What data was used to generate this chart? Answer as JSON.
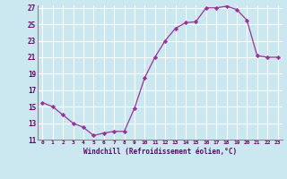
{
  "x": [
    0,
    1,
    2,
    3,
    4,
    5,
    6,
    7,
    8,
    9,
    10,
    11,
    12,
    13,
    14,
    15,
    16,
    17,
    18,
    19,
    20,
    21,
    22,
    23
  ],
  "y": [
    15.5,
    15.0,
    14.0,
    13.0,
    12.5,
    11.5,
    11.8,
    12.0,
    12.0,
    14.8,
    18.5,
    21.0,
    23.0,
    24.5,
    25.2,
    25.3,
    27.0,
    27.0,
    27.2,
    26.8,
    25.5,
    21.2,
    21.0,
    21.0
  ],
  "xlabel": "Windchill (Refroidissement éolien,°C)",
  "ylim": [
    11,
    27
  ],
  "yticks": [
    11,
    13,
    15,
    17,
    19,
    21,
    23,
    25,
    27
  ],
  "xticks": [
    0,
    1,
    2,
    3,
    4,
    5,
    6,
    7,
    8,
    9,
    10,
    11,
    12,
    13,
    14,
    15,
    16,
    17,
    18,
    19,
    20,
    21,
    22,
    23
  ],
  "line_color": "#993399",
  "marker_color": "#993399",
  "bg_color": "#cbe8f0",
  "grid_color": "#ffffff",
  "text_color": "#660066",
  "spine_color": "#888888"
}
